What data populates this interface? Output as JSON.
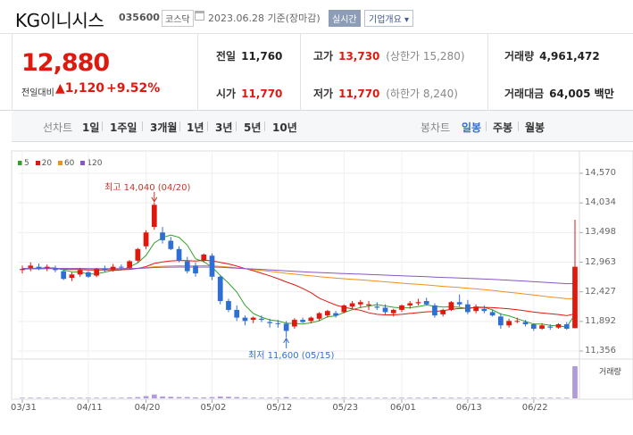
{
  "header": {
    "company": "KG이니시스",
    "code": "035600",
    "market": "코스닥",
    "date": "2023.06.28 기준(장마감)",
    "realtime_label": "실시간",
    "company_info_label": "기업개요 ▾"
  },
  "summary": {
    "price": "12,880",
    "change_label": "전일대비",
    "change_value": "▲1,120",
    "change_pct": "+9.52%",
    "prev_close_label": "전일",
    "prev_close": "11,760",
    "open_label": "시가",
    "open": "11,770",
    "high_label": "고가",
    "high": "13,730",
    "upper_limit": "(상한가 15,280)",
    "low_label": "저가",
    "low": "11,770",
    "lower_limit": "(하한가 8,240)",
    "volume_label": "거래량",
    "volume": "4,961,472",
    "amount_label": "거래대금",
    "amount": "64,005 백만"
  },
  "periods": {
    "line_label": "선차트",
    "line_items": [
      "1일",
      "1주일",
      "3개월",
      "1년",
      "3년",
      "5년",
      "10년"
    ],
    "candle_label": "봉차트",
    "candle_items": [
      "일봉",
      "주봉",
      "월봉"
    ],
    "active_candle": "일봉"
  },
  "legend": [
    {
      "name": "5",
      "color": "#34a02c"
    },
    {
      "name": "20",
      "color": "#e0190f"
    },
    {
      "name": "60",
      "color": "#f28e1c"
    },
    {
      "name": "120",
      "color": "#8a56c4"
    }
  ],
  "chart_data": {
    "type": "candlestick",
    "y_ticks": [
      "14,570",
      "14,034",
      "13,498",
      "12,963",
      "12,427",
      "11,892",
      "11,356"
    ],
    "x_ticks": [
      "03/31",
      "04/11",
      "04/20",
      "05/02",
      "05/12",
      "05/23",
      "06/01",
      "06/13",
      "06/22"
    ],
    "high_annotation": "최고 14,040 (04/20)",
    "low_annotation": "최저 11,600 (05/15)",
    "volume_label": "거래량",
    "candles": [
      [
        12820,
        12900,
        12760,
        12840
      ],
      [
        12860,
        12960,
        12800,
        12900
      ],
      [
        12880,
        12940,
        12820,
        12850
      ],
      [
        12860,
        12920,
        12800,
        12880
      ],
      [
        12850,
        12900,
        12780,
        12820
      ],
      [
        12800,
        12820,
        12640,
        12660
      ],
      [
        12680,
        12780,
        12620,
        12740
      ],
      [
        12740,
        12860,
        12700,
        12820
      ],
      [
        12780,
        12800,
        12680,
        12700
      ],
      [
        12720,
        12860,
        12690,
        12840
      ],
      [
        12850,
        12900,
        12780,
        12820
      ],
      [
        12830,
        12930,
        12790,
        12880
      ],
      [
        12880,
        12920,
        12820,
        12870
      ],
      [
        12860,
        13000,
        12840,
        12980
      ],
      [
        12990,
        13220,
        12960,
        13200
      ],
      [
        13250,
        13540,
        13200,
        13500
      ],
      [
        13600,
        14040,
        13550,
        14000
      ],
      [
        13500,
        13600,
        13300,
        13360
      ],
      [
        13350,
        13420,
        13180,
        13200
      ],
      [
        13200,
        13250,
        12960,
        13000
      ],
      [
        12980,
        13060,
        12760,
        12800
      ],
      [
        12900,
        12960,
        12700,
        12760
      ],
      [
        13000,
        13120,
        12960,
        13100
      ],
      [
        13080,
        13120,
        12640,
        12700
      ],
      [
        12700,
        12720,
        12200,
        12260
      ],
      [
        12260,
        12300,
        12060,
        12100
      ],
      [
        12100,
        12180,
        11900,
        11960
      ],
      [
        11960,
        12000,
        11820,
        11900
      ],
      [
        11920,
        11980,
        11860,
        11960
      ],
      [
        11940,
        12000,
        11880,
        11920
      ],
      [
        11880,
        11940,
        11780,
        11860
      ],
      [
        11860,
        11920,
        11780,
        11850
      ],
      [
        11850,
        11900,
        11600,
        11720
      ],
      [
        11800,
        11950,
        11760,
        11920
      ],
      [
        11920,
        11960,
        11860,
        11880
      ],
      [
        11900,
        11980,
        11860,
        11960
      ],
      [
        11940,
        12060,
        11900,
        12040
      ],
      [
        12000,
        12100,
        11960,
        12080
      ],
      [
        12040,
        12080,
        11960,
        12000
      ],
      [
        12060,
        12200,
        12040,
        12180
      ],
      [
        12160,
        12260,
        12120,
        12220
      ],
      [
        12200,
        12280,
        12140,
        12240
      ],
      [
        12180,
        12260,
        12100,
        12200
      ],
      [
        12160,
        12240,
        12100,
        12140
      ],
      [
        12140,
        12200,
        12020,
        12060
      ],
      [
        12040,
        12120,
        11980,
        12100
      ],
      [
        12100,
        12200,
        12060,
        12180
      ],
      [
        12180,
        12260,
        12120,
        12220
      ],
      [
        12220,
        12300,
        12180,
        12240
      ],
      [
        12260,
        12320,
        12180,
        12200
      ],
      [
        12180,
        12220,
        11960,
        12000
      ],
      [
        12020,
        12120,
        11980,
        12100
      ],
      [
        12100,
        12260,
        12080,
        12240
      ],
      [
        12240,
        12380,
        12160,
        12200
      ],
      [
        12200,
        12280,
        12020,
        12060
      ],
      [
        12080,
        12200,
        12040,
        12160
      ],
      [
        12120,
        12180,
        12040,
        12080
      ],
      [
        12060,
        12100,
        11980,
        12000
      ],
      [
        11980,
        12040,
        11760,
        11820
      ],
      [
        11820,
        11940,
        11780,
        11900
      ],
      [
        11900,
        11960,
        11860,
        11900
      ],
      [
        11880,
        11920,
        11800,
        11840
      ],
      [
        11840,
        11860,
        11720,
        11760
      ],
      [
        11760,
        11860,
        11740,
        11820
      ],
      [
        11800,
        11840,
        11740,
        11780
      ],
      [
        11780,
        11860,
        11760,
        11840
      ],
      [
        11840,
        11880,
        11740,
        11760
      ],
      [
        11770,
        13730,
        11770,
        12880
      ]
    ],
    "volume": [
      2,
      2,
      2,
      2,
      2,
      2,
      2,
      2,
      2,
      2,
      2,
      2,
      2,
      3,
      4,
      7,
      12,
      6,
      5,
      4,
      4,
      3,
      3,
      4,
      6,
      5,
      4,
      3,
      2,
      2,
      2,
      2,
      4,
      2,
      2,
      2,
      2,
      2,
      2,
      2,
      2,
      2,
      2,
      2,
      2,
      2,
      2,
      2,
      2,
      2,
      3,
      2,
      2,
      2,
      2,
      2,
      2,
      2,
      3,
      2,
      2,
      2,
      2,
      2,
      2,
      2,
      2,
      100
    ]
  }
}
